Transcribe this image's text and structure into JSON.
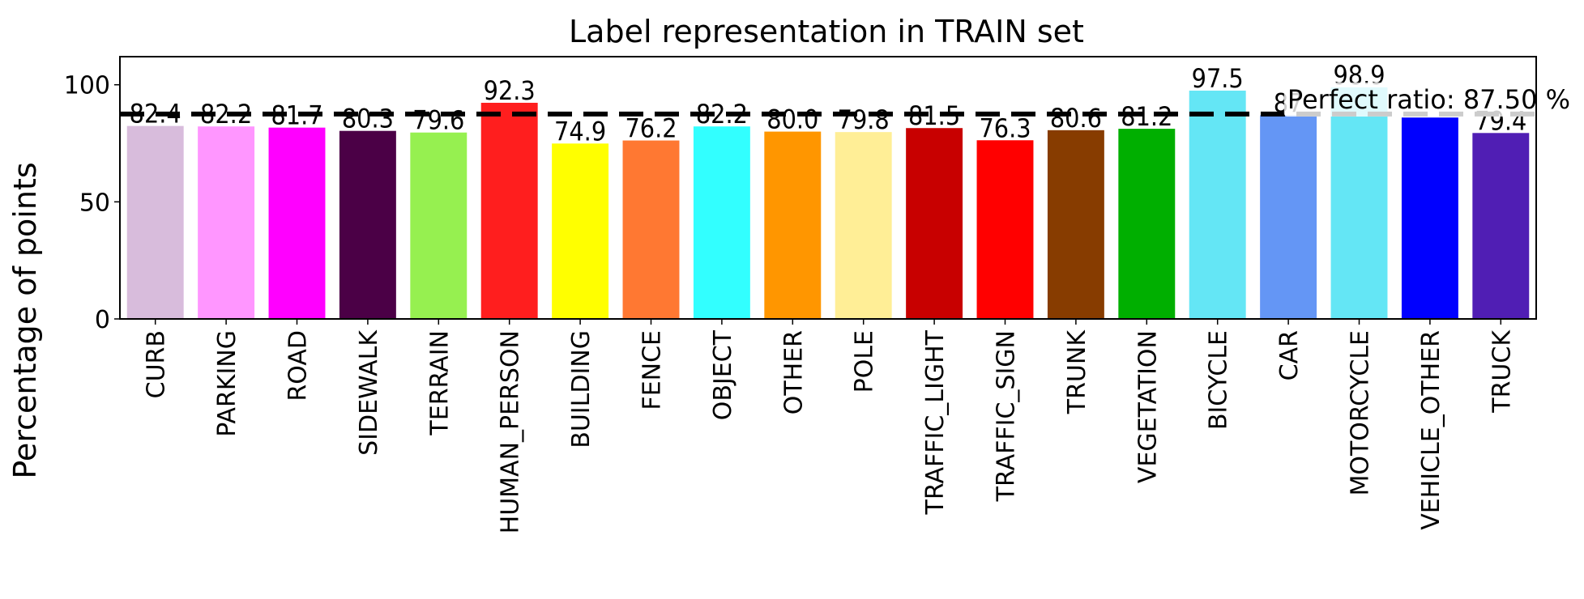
{
  "chart_data": {
    "type": "bar",
    "title": "Label representation in TRAIN set",
    "xlabel": "",
    "ylabel": "Percentage of points",
    "ylim": [
      0,
      112
    ],
    "yticks": [
      0,
      50,
      100
    ],
    "categories": [
      "CURB",
      "PARKING",
      "ROAD",
      "SIDEWALK",
      "TERRAIN",
      "HUMAN_PERSON",
      "BUILDING",
      "FENCE",
      "OBJECT",
      "OTHER",
      "POLE",
      "TRAFFIC_LIGHT",
      "TRAFFIC_SIGN",
      "TRUNK",
      "VEGETATION",
      "BICYCLE",
      "CAR",
      "MOTORCYCLE",
      "VEHICLE_OTHER",
      "TRUCK"
    ],
    "values": [
      82.4,
      82.2,
      81.7,
      80.3,
      79.6,
      92.3,
      74.9,
      76.2,
      82.2,
      80.0,
      79.8,
      81.5,
      76.3,
      80.6,
      81.2,
      97.5,
      87.0,
      98.9,
      86.0,
      79.4
    ],
    "data_labels": [
      "82.4",
      "82.2",
      "81.7",
      "80.3",
      "79.6",
      "92.3",
      "74.9",
      "76.2",
      "82.2",
      "80.0",
      "79.8",
      "81.5",
      "76.3",
      "80.6",
      "81.2",
      "97.5",
      "87",
      "98.9",
      "",
      "79.4"
    ],
    "colors": [
      "#d8bcdc",
      "#ff96ff",
      "#ff00ff",
      "#4b0046",
      "#96f050",
      "#ff1e1e",
      "#ffff00",
      "#ff7832",
      "#32ffff",
      "#ff9600",
      "#ffee96",
      "#c80000",
      "#ff0000",
      "#873c00",
      "#00af00",
      "#64e6f5",
      "#6496f5",
      "#64e6f5",
      "#0000ff",
      "#501eb4"
    ],
    "reference_line": {
      "value": 87.5,
      "label": "Perfect ratio: 87.50 %",
      "style": "dashed",
      "color": "#000000"
    },
    "legend": "none",
    "grid": false
  }
}
